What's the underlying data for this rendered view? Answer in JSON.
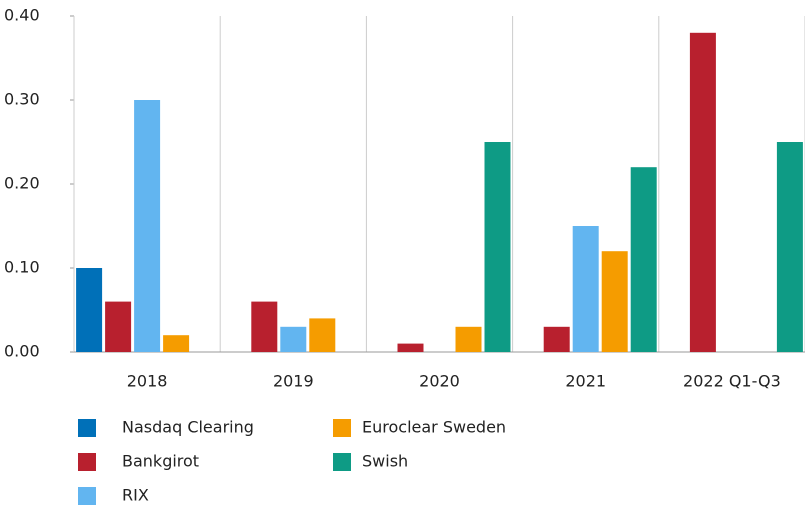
{
  "chart_data": {
    "type": "bar",
    "categories": [
      "2018",
      "2019",
      "2020",
      "2021",
      "2022 Q1-Q3"
    ],
    "series": [
      {
        "name": "Nasdaq Clearing",
        "color": "#0070b8",
        "values": [
          0.1,
          0,
          0,
          0,
          0
        ]
      },
      {
        "name": "Bankgirot",
        "color": "#b8202e",
        "values": [
          0.06,
          0.06,
          0.01,
          0.03,
          0.38
        ]
      },
      {
        "name": "RIX",
        "color": "#62b5f0",
        "values": [
          0.3,
          0.03,
          0,
          0.15,
          0
        ]
      },
      {
        "name": "Euroclear Sweden",
        "color": "#f59c00",
        "values": [
          0.02,
          0.04,
          0.03,
          0.12,
          0
        ]
      },
      {
        "name": "Swish",
        "color": "#0e9b85",
        "values": [
          0,
          0,
          0.25,
          0.22,
          0.25
        ]
      }
    ],
    "ylim": [
      0,
      0.4
    ],
    "yticks": [
      {
        "value": 0,
        "label": "0.00"
      },
      {
        "value": 0.1,
        "label": "0.10"
      },
      {
        "value": 0.2,
        "label": "0.20"
      },
      {
        "value": 0.3,
        "label": "0.30"
      },
      {
        "value": 0.4,
        "label": "0.40"
      }
    ],
    "grid": true
  }
}
